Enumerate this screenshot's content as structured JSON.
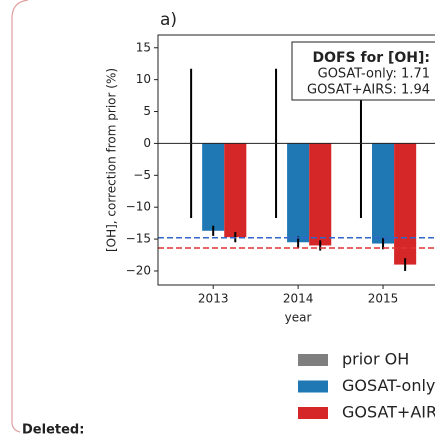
{
  "chart_data": {
    "type": "bar",
    "panel_label": "a)",
    "xlabel": "year",
    "ylabel": "[OH], correction from prior (%)",
    "x": [
      2013,
      2014,
      2015
    ],
    "xlim": [
      2012.35,
      2015.8
    ],
    "xticks": [
      2013,
      2014,
      2015
    ],
    "ylim": [
      -22.2,
      17
    ],
    "yticks": [
      {
        "value": -20,
        "label": "−20"
      },
      {
        "value": -15,
        "label": "−15"
      },
      {
        "value": -10,
        "label": "−10"
      },
      {
        "value": -5,
        "label": "−5"
      },
      0,
      5,
      10,
      15
    ],
    "series": [
      {
        "name": "prior OH",
        "color": "#7f7f7f",
        "values": [
          0,
          0,
          0
        ],
        "errors": [
          11.7,
          11.7,
          11.7
        ]
      },
      {
        "name": "GOSAT-only",
        "color": "#1f77b4",
        "values": [
          -13.7,
          -15.5,
          -15.7
        ],
        "errors": [
          0.8,
          0.9,
          0.9
        ]
      },
      {
        "name": "GOSAT+AIRS",
        "color": "#d62728",
        "values": [
          -14.7,
          -16,
          -19
        ],
        "errors": [
          0.8,
          0.8,
          1
        ]
      }
    ],
    "reference_lines": [
      {
        "value": -14.8,
        "color": "#3366cc"
      },
      {
        "value": -16.4,
        "color": "#dd3333"
      }
    ],
    "annotation": [
      "DOFS for [OH]:",
      "GOSAT-only: 1.71",
      "GOSAT+AIRS: 1.94"
    ]
  },
  "footer": "Deleted:"
}
